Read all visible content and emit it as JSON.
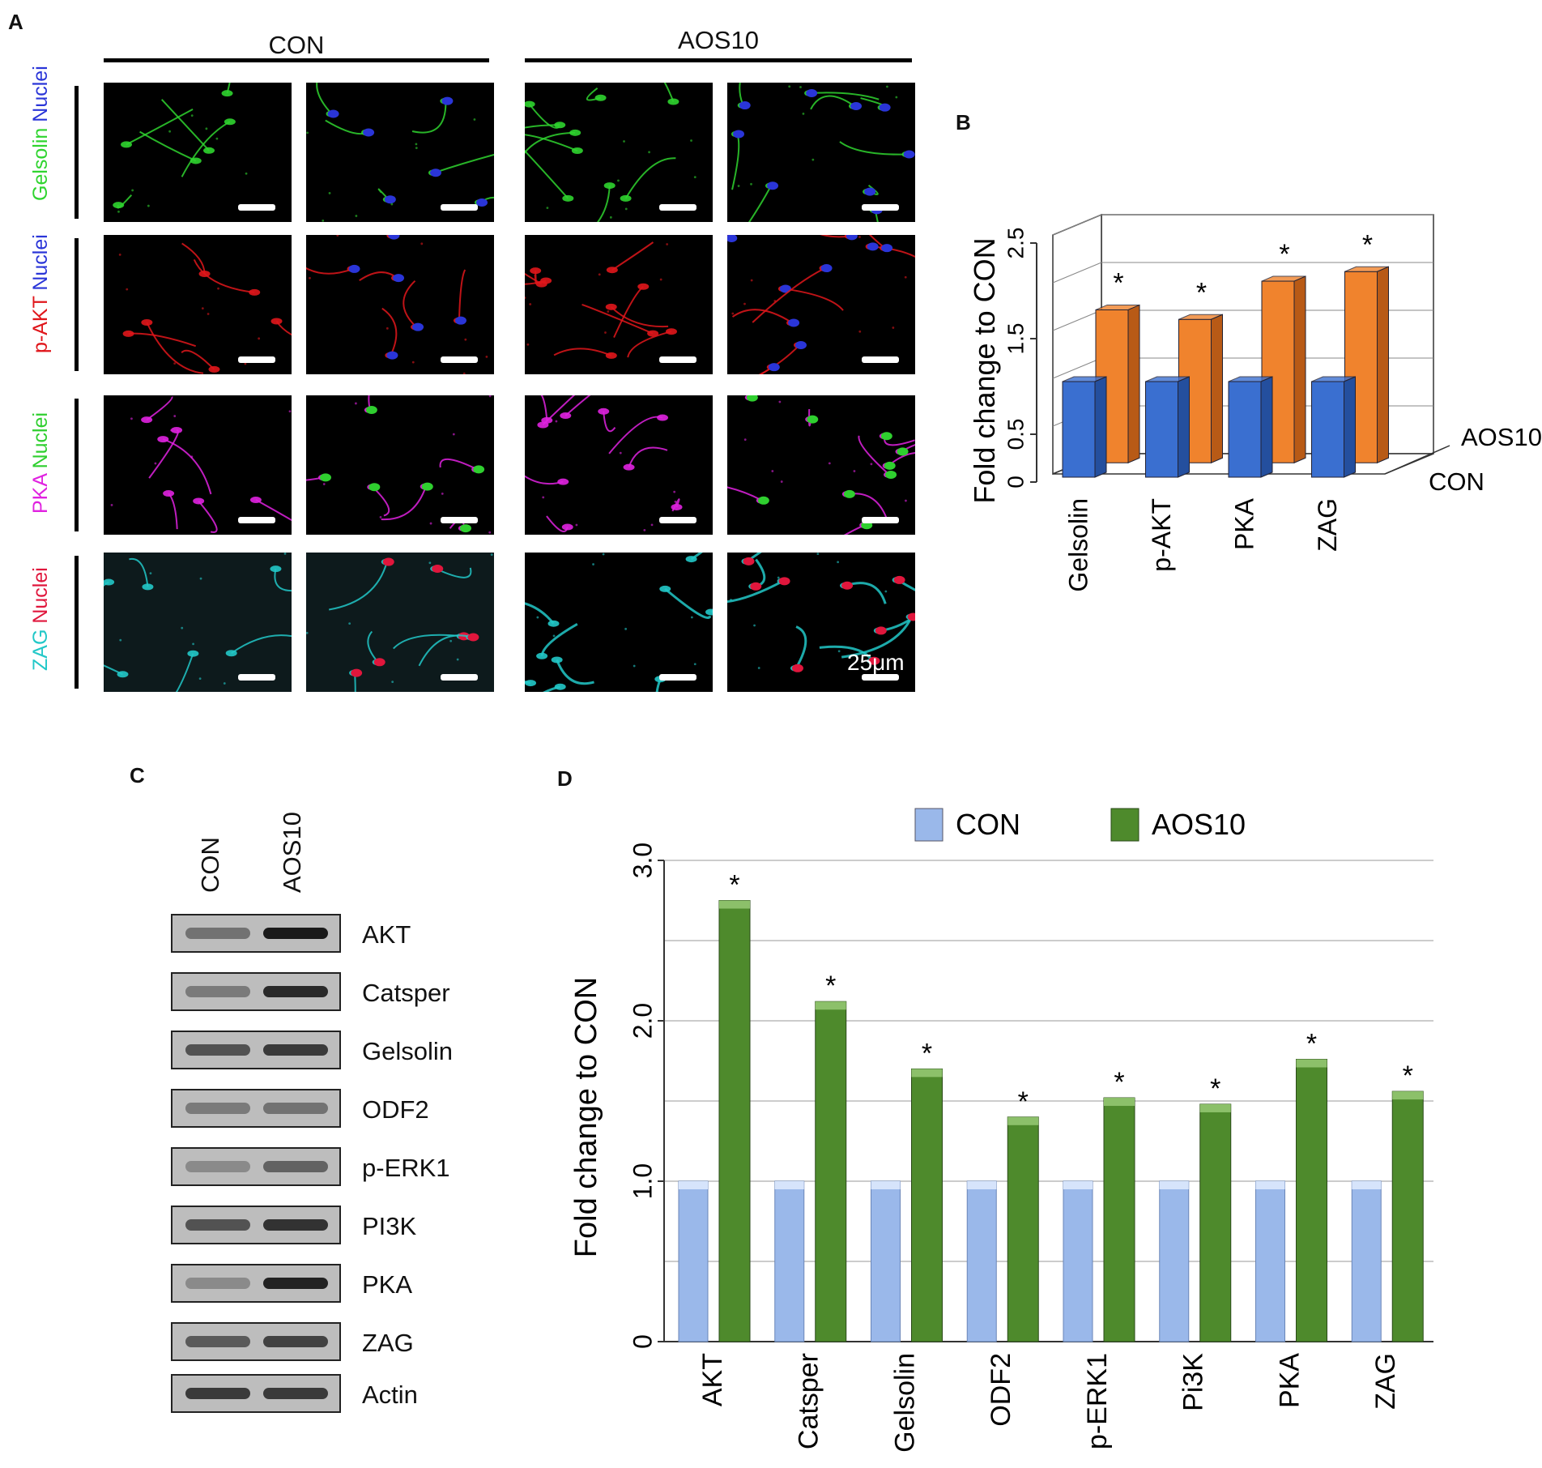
{
  "panels": {
    "a": "A",
    "b": "B",
    "c": "C",
    "d": "D"
  },
  "panel_a": {
    "groups": [
      "CON",
      "AOS10"
    ],
    "rows": [
      {
        "stain": "Gelsolin",
        "counter": "Nuclei",
        "stain_color": "#2fd42f",
        "counter_color": "#2a35d8"
      },
      {
        "stain": "p-AKT",
        "counter": "Nuclei",
        "stain_color": "#e0161b",
        "counter_color": "#2a35d8"
      },
      {
        "stain": "PKA",
        "counter": "Nuclei",
        "stain_color": "#e022e0",
        "counter_color": "#2fcf2f"
      },
      {
        "stain": "ZAG",
        "counter": "Nuclei",
        "stain_color": "#22c8c8",
        "counter_color": "#e0163c"
      }
    ],
    "scale_label": "25μm"
  },
  "panel_c": {
    "lanes": [
      "CON",
      "AOS10"
    ],
    "proteins": [
      "AKT",
      "Catsper",
      "Gelsolin",
      "ODF2",
      "p-ERK1",
      "PI3K",
      "PKA",
      "ZAG",
      "Actin"
    ]
  },
  "chart_data": [
    {
      "type": "bar",
      "style": "3d",
      "panel": "B",
      "categories": [
        "Gelsolin",
        "p-AKT",
        "PKA",
        "ZAG"
      ],
      "series": [
        {
          "name": "CON",
          "values": [
            1.0,
            1.0,
            1.0,
            1.0
          ],
          "color": "#3a6fd0"
        },
        {
          "name": "AOS10",
          "values": [
            1.6,
            1.5,
            1.9,
            2.0
          ],
          "color": "#f0832d"
        }
      ],
      "significance": [
        "*",
        "*",
        "*",
        "*"
      ],
      "ylabel": "Fold change to CON",
      "yticks": [
        "0",
        "0.5",
        "1.5",
        "2.5"
      ],
      "ylim": [
        0,
        2.5
      ],
      "grid": true
    },
    {
      "type": "bar",
      "panel": "D",
      "categories": [
        "AKT",
        "Catsper",
        "Gelsolin",
        "ODF2",
        "p-ERK1",
        "Pi3K",
        "PKA",
        "ZAG"
      ],
      "series": [
        {
          "name": "CON",
          "values": [
            1.0,
            1.0,
            1.0,
            1.0,
            1.0,
            1.0,
            1.0,
            1.0
          ],
          "color": "#9ab8ea"
        },
        {
          "name": "AOS10",
          "values": [
            2.75,
            2.12,
            1.7,
            1.4,
            1.52,
            1.48,
            1.76,
            1.56
          ],
          "color": "#4e8a2c"
        }
      ],
      "significance": [
        "*",
        "*",
        "*",
        "*",
        "*",
        "*",
        "*",
        "*"
      ],
      "ylabel": "Fold change to CON",
      "yticks": [
        "0",
        "1.0",
        "2.0",
        "3.0"
      ],
      "ylim": [
        0,
        3.0
      ],
      "legend": "top",
      "grid": true
    }
  ]
}
